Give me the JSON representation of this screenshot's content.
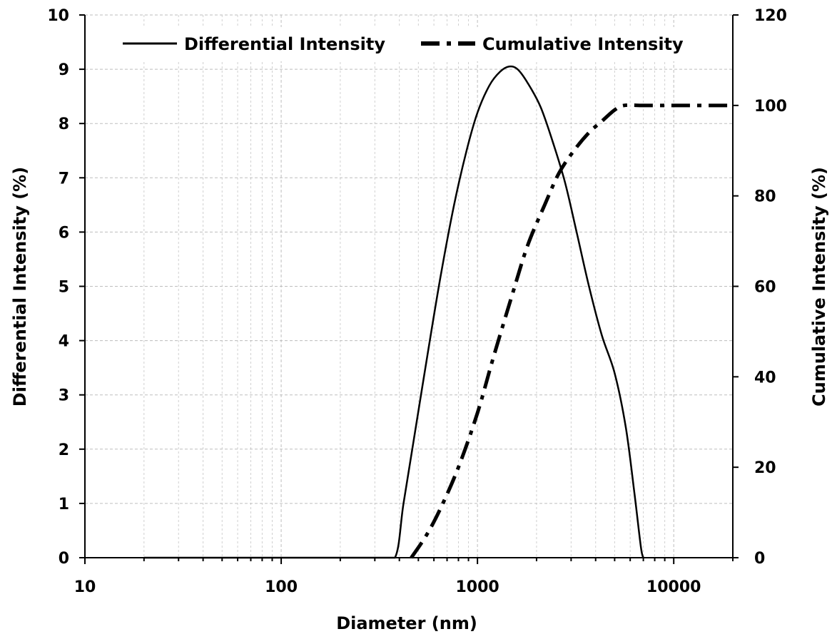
{
  "chart_data": {
    "type": "line",
    "title": "",
    "xlabel": "Diameter (nm)",
    "ylabel": "Differential Intensity (%)",
    "y2label": "Cumulative Intensity (%)",
    "xscale": "log",
    "xlim": [
      10,
      20000
    ],
    "ylim": [
      0,
      10
    ],
    "y2lim": [
      0,
      120
    ],
    "xticks": [
      10,
      100,
      1000,
      10000
    ],
    "xtick_labels": [
      "10",
      "100",
      "1000",
      "10000"
    ],
    "yticks": [
      0,
      1,
      2,
      3,
      4,
      5,
      6,
      7,
      8,
      9,
      10
    ],
    "ytick_labels": [
      "0",
      "1",
      "2",
      "3",
      "4",
      "5",
      "6",
      "7",
      "8",
      "9",
      "10"
    ],
    "y2ticks": [
      0,
      20,
      40,
      60,
      80,
      100,
      120
    ],
    "y2tick_labels": [
      "0",
      "20",
      "40",
      "60",
      "80",
      "100",
      "120"
    ],
    "grid": true,
    "legend_position": "top",
    "series": [
      {
        "name": "Differential Intensity",
        "axis": "left",
        "style": "solid",
        "color": "#000000",
        "x": [
          20,
          30,
          50,
          100,
          200,
          300,
          380,
          420,
          480,
          560,
          650,
          760,
          880,
          1000,
          1150,
          1300,
          1450,
          1600,
          1800,
          2100,
          2450,
          2800,
          3200,
          3700,
          4300,
          5000,
          5700,
          6300,
          6800,
          7000
        ],
        "y": [
          0,
          0,
          0,
          0,
          0,
          0,
          0,
          1.0,
          2.3,
          3.8,
          5.2,
          6.5,
          7.5,
          8.2,
          8.7,
          8.95,
          9.05,
          9.0,
          8.75,
          8.3,
          7.6,
          6.9,
          6.0,
          5.0,
          4.1,
          3.4,
          2.4,
          1.2,
          0.2,
          0
        ]
      },
      {
        "name": "Cumulative Intensity",
        "axis": "right",
        "style": "dash-dot",
        "color": "#000000",
        "x": [
          460,
          550,
          650,
          800,
          1000,
          1200,
          1500,
          1800,
          2200,
          2600,
          3100,
          3700,
          4300,
          5000,
          5600,
          7000,
          10000,
          20000
        ],
        "y": [
          0,
          5,
          11,
          20,
          32,
          44,
          58,
          69,
          78,
          85,
          90,
          94,
          96.5,
          99,
          100,
          100,
          100,
          100
        ]
      }
    ]
  }
}
